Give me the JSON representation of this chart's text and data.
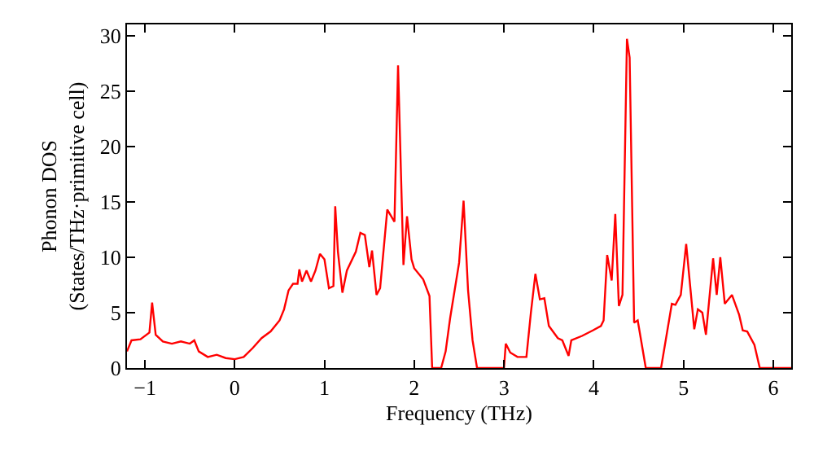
{
  "chart_data": {
    "type": "line",
    "xlabel": "Frequency (THz)",
    "ylabel": "Phonon DOS\n(States/THz·primitive cell)",
    "xlim": [
      -1.2,
      6.2
    ],
    "ylim": [
      0,
      31
    ],
    "xticks": [
      -1,
      0,
      1,
      2,
      3,
      4,
      5,
      6
    ],
    "yticks": [
      0,
      5,
      10,
      15,
      20,
      25,
      30
    ],
    "marker": "none",
    "line_style": "solid",
    "series": [
      {
        "color": "#ff0000",
        "x": [
          -1.2,
          -1.15,
          -1.05,
          -0.95,
          -0.92,
          -0.88,
          -0.8,
          -0.7,
          -0.6,
          -0.5,
          -0.45,
          -0.4,
          -0.3,
          -0.2,
          -0.1,
          0,
          0.1,
          0.2,
          0.3,
          0.4,
          0.5,
          0.55,
          0.6,
          0.65,
          0.7,
          0.72,
          0.75,
          0.8,
          0.85,
          0.9,
          0.95,
          1.0,
          1.05,
          1.1,
          1.12,
          1.15,
          1.2,
          1.25,
          1.35,
          1.4,
          1.45,
          1.5,
          1.53,
          1.58,
          1.62,
          1.7,
          1.78,
          1.82,
          1.88,
          1.92,
          1.97,
          2.0,
          2.1,
          2.17,
          2.2,
          2.3,
          2.35,
          2.4,
          2.5,
          2.55,
          2.6,
          2.65,
          2.7,
          3.0,
          3.02,
          3.07,
          3.15,
          3.25,
          3.3,
          3.35,
          3.4,
          3.45,
          3.5,
          3.6,
          3.65,
          3.72,
          3.75,
          3.87,
          3.99,
          4.08,
          4.11,
          4.15,
          4.2,
          4.24,
          4.28,
          4.32,
          4.37,
          4.4,
          4.45,
          4.49,
          4.58,
          4.75,
          4.87,
          4.91,
          4.97,
          5.03,
          5.12,
          5.16,
          5.21,
          5.25,
          5.33,
          5.37,
          5.41,
          5.46,
          5.54,
          5.62,
          5.66,
          5.71,
          5.79,
          5.85,
          6.2
        ],
        "values": [
          1.5,
          2.5,
          2.6,
          3.2,
          5.9,
          3.0,
          2.4,
          2.2,
          2.4,
          2.2,
          2.5,
          1.5,
          1.0,
          1.2,
          0.9,
          0.8,
          1.0,
          1.8,
          2.7,
          3.3,
          4.3,
          5.3,
          7.0,
          7.6,
          7.6,
          8.9,
          7.8,
          8.8,
          7.8,
          8.8,
          10.3,
          9.8,
          7.2,
          7.4,
          14.6,
          10.5,
          6.8,
          8.8,
          10.5,
          12.2,
          12.0,
          9.1,
          10.6,
          6.6,
          7.2,
          14.3,
          13.2,
          27.3,
          9.3,
          13.7,
          9.8,
          9.0,
          8.0,
          6.5,
          0,
          0,
          1.5,
          4.5,
          9.5,
          15.1,
          7.0,
          2.5,
          0,
          0,
          2.2,
          1.4,
          1.0,
          1.0,
          5.0,
          8.5,
          6.2,
          6.3,
          3.8,
          2.7,
          2.5,
          1.1,
          2.5,
          2.9,
          3.4,
          3.8,
          4.3,
          10.2,
          7.9,
          13.9,
          5.6,
          6.6,
          29.7,
          28.0,
          4.1,
          4.3,
          0,
          0,
          5.8,
          5.7,
          6.6,
          11.2,
          3.5,
          5.3,
          5.0,
          3.0,
          9.9,
          6.6,
          10.0,
          5.8,
          6.6,
          4.8,
          3.4,
          3.3,
          2.1,
          0,
          0
        ]
      }
    ]
  }
}
